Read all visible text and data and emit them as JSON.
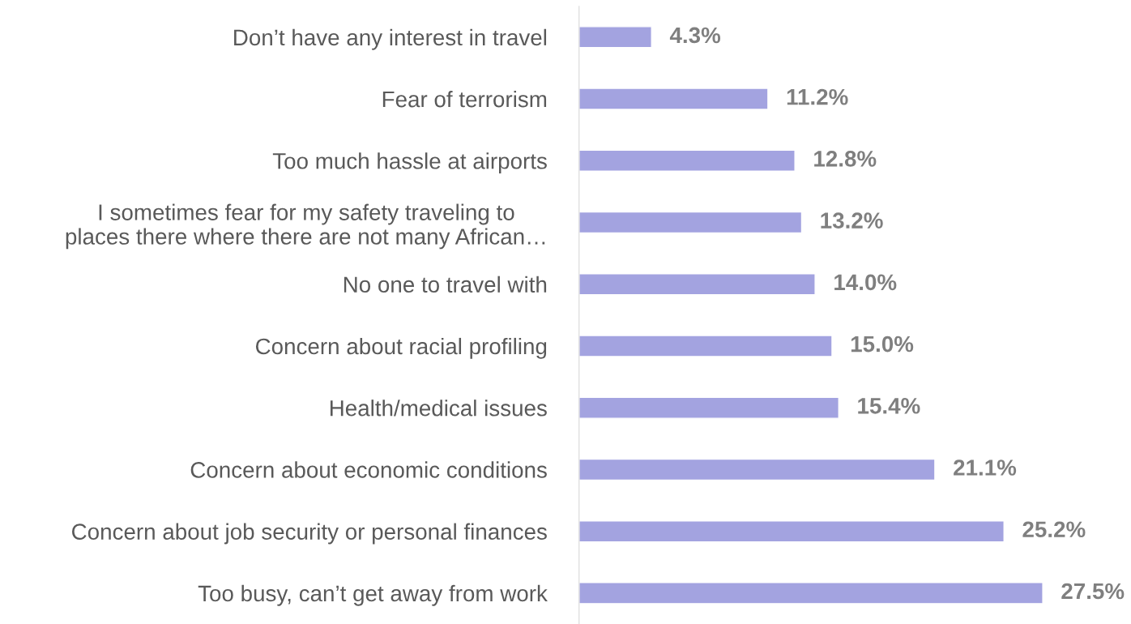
{
  "chart_data": {
    "type": "bar",
    "orientation": "horizontal",
    "categories": [
      "Don’t have any interest in travel",
      "Fear of terrorism",
      "Too much hassle at airports",
      "I sometimes fear for my safety traveling to\nplaces there where there are not many African…",
      "No one to travel with",
      "Concern about racial profiling",
      "Health/medical issues",
      "Concern about economic conditions",
      "Concern about job security or personal finances",
      "Too busy, can’t get away from work"
    ],
    "values": [
      4.3,
      11.2,
      12.8,
      13.2,
      14.0,
      15.0,
      15.4,
      21.1,
      25.2,
      27.5
    ],
    "value_labels": [
      "4.3%",
      "11.2%",
      "12.8%",
      "13.2%",
      "14.0%",
      "15.0%",
      "15.4%",
      "21.1%",
      "25.2%",
      "27.5%"
    ],
    "color": "#a3a3e0",
    "grid": false,
    "legend": false
  }
}
